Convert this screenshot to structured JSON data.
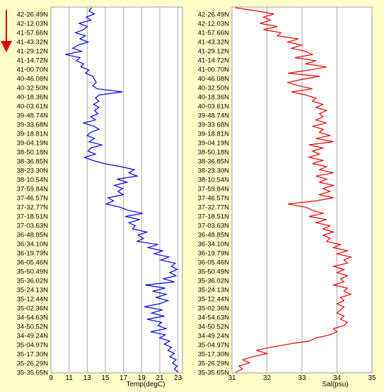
{
  "depth_arrow_color": "#e00000",
  "latitudes": [
    "42-26.49N",
    "42-12.03N",
    "41-57.66N",
    "41-43.32N",
    "41-29.12N",
    "41-14.72N",
    "41-00.70N",
    "40-46.08N",
    "40-32.50N",
    "40-18.36N",
    "40-03.61N",
    "39-48.74N",
    "39-33.68N",
    "39-18.81N",
    "39-04.19N",
    "38-50.18N",
    "38-36.85N",
    "38-23.30N",
    "38-10.54N",
    "37-59.84N",
    "37-46.57N",
    "37-32.77N",
    "37-18.51N",
    "37-03.63N",
    "36-48.85N",
    "36-34.10N",
    "36-19.79N",
    "36-05.46N",
    "35-50.49N",
    "35-36.02N",
    "35-24.13N",
    "35-12.44N",
    "35-02.36N",
    "34-54.63N",
    "34-50.52N",
    "34-49.24N",
    "35-04.97N",
    "35-17.30N",
    "35-26.29N",
    "35-35.65N"
  ],
  "chart_data": [
    {
      "type": "line",
      "xlabel": "Temp(degC)",
      "xlim": [
        9,
        23.5
      ],
      "xticks": [
        "9",
        "11",
        "13",
        "15",
        "17",
        "19",
        "21",
        "23"
      ],
      "grid": true,
      "color": "#0000e6",
      "y_categories_ref": "latitudes",
      "series": [
        {
          "x": [
            13.5,
            13.2,
            13.8,
            12.9,
            13.4,
            12.1,
            13.0,
            12.6,
            11.7,
            12.8,
            12.2,
            13.1,
            12.0,
            11.4,
            12.4,
            10.6,
            12.2,
            11.8,
            12.6,
            12.3,
            13.2,
            12.8,
            13.6,
            13.8,
            14.0,
            13.6,
            14.1,
            16.9,
            14.3,
            13.9,
            14.3,
            13.7,
            14.3,
            13.8,
            14.2,
            13.4,
            13.9,
            12.6,
            13.7,
            14.3,
            13.4,
            13.0,
            13.8,
            13.2,
            14.6,
            13.4,
            13.1,
            13.9,
            12.7,
            13.6,
            14.8,
            16.7,
            18.2,
            17.6,
            18.5,
            16.3,
            17.4,
            16.0,
            16.9,
            16.4,
            17.0,
            15.3,
            15.9,
            15.1,
            16.6,
            17.5,
            19.1,
            17.2,
            18.8,
            17.6,
            18.3,
            18.0,
            19.6,
            18.6,
            19.2,
            18.5,
            20.8,
            19.7,
            21.3,
            20.4,
            22.0,
            21.1,
            22.7,
            22.3,
            22.9,
            22.1,
            22.8,
            21.4,
            22.6,
            19.4,
            21.6,
            20.2,
            21.7,
            20.6,
            21.9,
            21.0,
            19.3,
            21.3,
            20.1,
            21.5,
            19.6,
            21.2,
            20.8,
            21.7,
            20.0,
            21.6,
            21.0,
            22.1,
            21.5,
            22.3,
            21.9,
            22.6,
            22.1,
            22.8,
            22.4,
            22.9,
            22.6,
            23.0
          ]
        }
      ]
    },
    {
      "type": "line",
      "xlabel": "Sal(psu)",
      "xlim": [
        31,
        35
      ],
      "xticks": [
        "31",
        "32",
        "33",
        "34",
        "35"
      ],
      "grid": true,
      "color": "#e60000",
      "y_categories_ref": "latitudes",
      "series": [
        {
          "x": [
            31.1,
            31.7,
            32.2,
            31.9,
            32.1,
            31.8,
            32.3,
            31.9,
            32.4,
            32.3,
            32.9,
            32.6,
            33.0,
            32.7,
            33.1,
            33.3,
            32.8,
            33.4,
            33.1,
            33.7,
            33.2,
            32.6,
            33.5,
            33.0,
            32.6,
            32.9,
            33.3,
            32.7,
            33.1,
            33.4,
            33.3,
            33.6,
            33.4,
            33.7,
            33.5,
            33.6,
            33.4,
            33.7,
            33.3,
            33.6,
            33.5,
            33.8,
            33.4,
            33.9,
            33.2,
            33.6,
            33.3,
            33.5,
            33.2,
            33.6,
            33.3,
            33.7,
            33.5,
            33.9,
            33.4,
            33.7,
            33.5,
            33.9,
            33.6,
            33.8,
            33.5,
            33.9,
            33.4,
            32.6,
            33.1,
            33.3,
            33.6,
            33.2,
            33.7,
            33.4,
            33.8,
            33.6,
            33.9,
            33.6,
            33.8,
            33.7,
            34.1,
            33.9,
            34.3,
            34.0,
            34.4,
            34.2,
            34.3,
            33.9,
            34.2,
            34.0,
            34.3,
            34.1,
            34.2,
            33.9,
            34.3,
            34.2,
            34.4,
            34.1,
            34.2,
            34.0,
            34.2,
            34.1,
            34.0,
            34.2,
            34.1,
            34.3,
            34.2,
            33.9,
            34.0,
            33.8,
            33.4,
            33.2,
            32.6,
            32.1,
            31.7,
            32.0,
            31.6,
            31.3,
            31.5,
            31.2,
            31.3,
            31.1
          ]
        }
      ]
    }
  ]
}
